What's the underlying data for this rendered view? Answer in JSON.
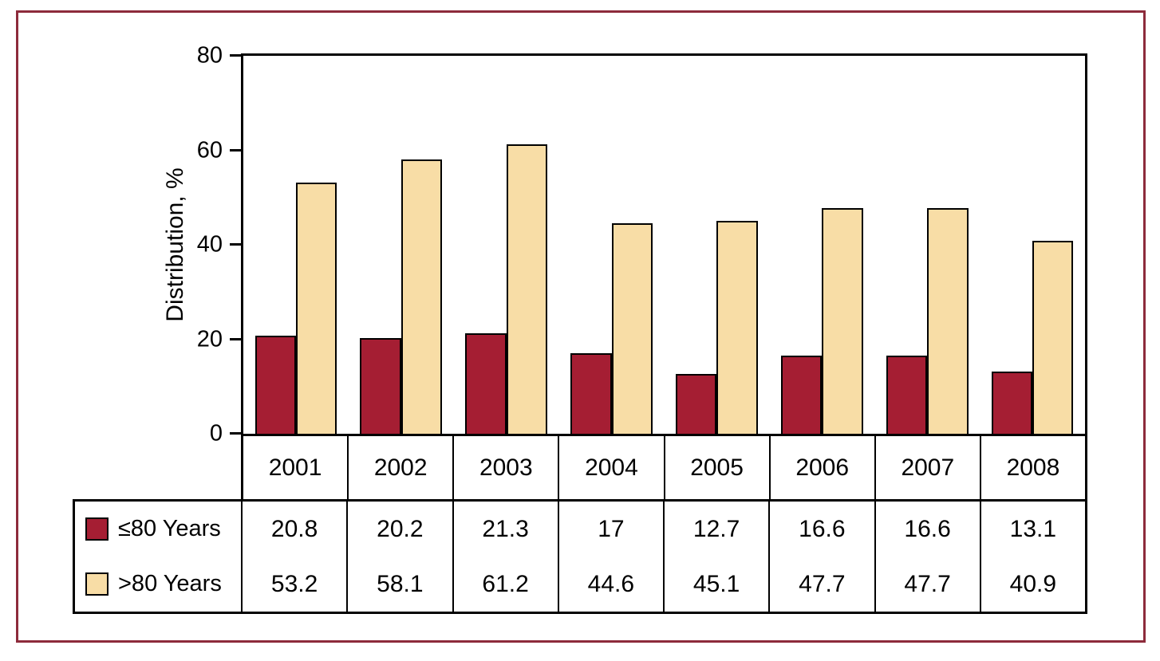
{
  "frame": {
    "border_color": "#8d2b3b"
  },
  "chart_data": {
    "type": "bar",
    "title": "",
    "categories": [
      "2001",
      "2002",
      "2003",
      "2004",
      "2005",
      "2006",
      "2007",
      "2008"
    ],
    "series": [
      {
        "name": "≤80 Years",
        "color": "#a51e33",
        "values": [
          20.8,
          20.2,
          21.3,
          17,
          12.7,
          16.6,
          16.6,
          13.1
        ]
      },
      {
        "name": ">80 Years",
        "color": "#f8dda6",
        "values": [
          53.2,
          58.1,
          61.2,
          44.6,
          45.1,
          47.7,
          47.7,
          40.9
        ]
      }
    ],
    "xlabel": "",
    "ylabel": "Distribution, %",
    "ylim": [
      0,
      80
    ],
    "yticks": [
      0,
      20,
      40,
      60,
      80
    ],
    "grid": false,
    "legend_position": "table-below",
    "bar_border_color": "#000000"
  }
}
